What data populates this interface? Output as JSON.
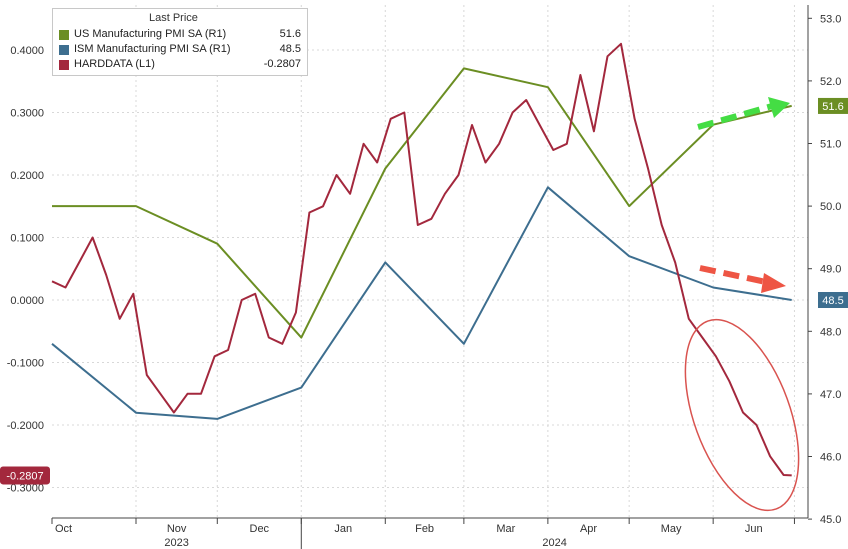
{
  "legend": {
    "title": "Last Price",
    "items": [
      {
        "name": "US Manufacturing PMI SA  (R1)",
        "value": "51.6",
        "color": "#6b8e23"
      },
      {
        "name": "ISM Manufacturing PMI SA  (R1)",
        "value": "48.5",
        "color": "#3d6e8f"
      },
      {
        "name": "HARDDATA  (L1)",
        "value": "-0.2807",
        "color": "#a3283d"
      }
    ]
  },
  "chart_data": {
    "type": "line",
    "x_months": [
      "Oct",
      "Nov",
      "Dec",
      "Jan",
      "Feb",
      "Mar",
      "Apr",
      "May",
      "Jun"
    ],
    "x_years": [
      "2023",
      "2024"
    ],
    "left_axis": {
      "ticks": [
        "0.4000",
        "0.3000",
        "0.2000",
        "0.1000",
        "0.0000",
        "-0.1000",
        "-0.2000",
        "-0.3000"
      ],
      "ylim": [
        -0.3,
        0.4
      ]
    },
    "right_axis": {
      "ticks": [
        "53.0",
        "52.0",
        "51.0",
        "50.0",
        "49.0",
        "48.0",
        "47.0",
        "46.0",
        "45.0"
      ],
      "ylim": [
        45.0,
        53.0
      ]
    },
    "grid": true,
    "legend_position": "top-left",
    "series": [
      {
        "name": "US Manufacturing PMI SA",
        "axis": "right",
        "color": "#6b8e23",
        "x": [
          "2023-10-01",
          "2023-11-01",
          "2023-12-01",
          "2024-01-01",
          "2024-02-01",
          "2024-03-01",
          "2024-04-01",
          "2024-05-01",
          "2024-06-01",
          "2024-06-30"
        ],
        "y": [
          50.0,
          50.0,
          49.4,
          47.9,
          50.6,
          52.2,
          51.9,
          50.0,
          51.3,
          51.6
        ],
        "last_label": "51.6"
      },
      {
        "name": "ISM Manufacturing PMI SA",
        "axis": "right",
        "color": "#3d6e8f",
        "x": [
          "2023-10-01",
          "2023-11-01",
          "2023-12-01",
          "2024-01-01",
          "2024-02-01",
          "2024-03-01",
          "2024-04-01",
          "2024-05-01",
          "2024-06-01",
          "2024-06-30"
        ],
        "y": [
          47.8,
          46.7,
          46.6,
          47.1,
          49.1,
          47.8,
          50.3,
          49.2,
          48.7,
          48.5
        ],
        "last_label": "48.5"
      },
      {
        "name": "HARDDATA",
        "axis": "left",
        "color": "#a3283d",
        "x": [
          "2023-10-01",
          "2023-10-06",
          "2023-10-11",
          "2023-10-16",
          "2023-10-21",
          "2023-10-26",
          "2023-10-31",
          "2023-11-05",
          "2023-11-10",
          "2023-11-15",
          "2023-11-20",
          "2023-11-25",
          "2023-11-30",
          "2023-12-05",
          "2023-12-10",
          "2023-12-15",
          "2023-12-20",
          "2023-12-25",
          "2023-12-30",
          "2024-01-04",
          "2024-01-09",
          "2024-01-14",
          "2024-01-19",
          "2024-01-24",
          "2024-01-29",
          "2024-02-03",
          "2024-02-08",
          "2024-02-13",
          "2024-02-18",
          "2024-02-23",
          "2024-02-28",
          "2024-03-04",
          "2024-03-09",
          "2024-03-14",
          "2024-03-19",
          "2024-03-24",
          "2024-03-29",
          "2024-04-03",
          "2024-04-08",
          "2024-04-13",
          "2024-04-18",
          "2024-04-23",
          "2024-04-28",
          "2024-05-03",
          "2024-05-08",
          "2024-05-13",
          "2024-05-18",
          "2024-05-23",
          "2024-05-28",
          "2024-06-02",
          "2024-06-07",
          "2024-06-12",
          "2024-06-17",
          "2024-06-22",
          "2024-06-27",
          "2024-06-30"
        ],
        "y": [
          0.03,
          0.02,
          0.06,
          0.1,
          0.04,
          -0.03,
          0.01,
          -0.12,
          -0.15,
          -0.18,
          -0.15,
          -0.15,
          -0.09,
          -0.08,
          0.0,
          0.01,
          -0.06,
          -0.07,
          -0.02,
          0.14,
          0.15,
          0.2,
          0.17,
          0.25,
          0.22,
          0.29,
          0.3,
          0.12,
          0.13,
          0.17,
          0.2,
          0.28,
          0.22,
          0.25,
          0.3,
          0.32,
          0.28,
          0.24,
          0.25,
          0.36,
          0.27,
          0.39,
          0.41,
          0.29,
          0.21,
          0.12,
          0.06,
          -0.03,
          -0.06,
          -0.09,
          -0.13,
          -0.18,
          -0.2,
          -0.25,
          -0.28,
          -0.2807
        ],
        "last_label": "-0.2807"
      }
    ],
    "annotations": [
      {
        "kind": "dashed-arrow",
        "color": "#44dd44",
        "direction": "up-right",
        "near": "US Manufacturing PMI SA"
      },
      {
        "kind": "dashed-arrow",
        "color": "#ee5544",
        "direction": "right",
        "near": "ISM Manufacturing PMI SA"
      },
      {
        "kind": "ellipse",
        "color": "#d9534f",
        "around": "HARDDATA May-Jun decline"
      }
    ]
  }
}
